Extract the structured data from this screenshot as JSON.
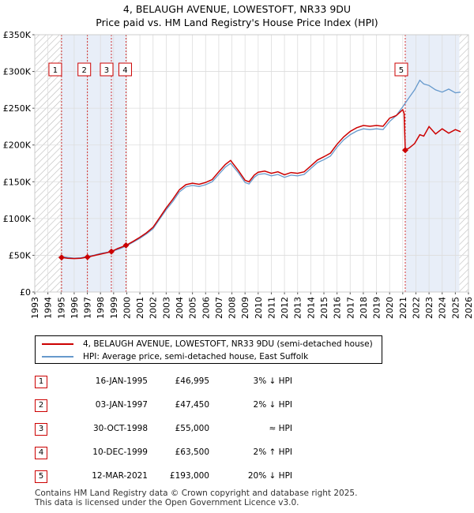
{
  "title": "4, BELAUGH AVENUE, LOWESTOFT, NR33 9DU",
  "subtitle": "Price paid vs. HM Land Registry's House Price Index (HPI)",
  "colors": {
    "price": "#cc0000",
    "hpi": "#6699cc",
    "shade": "#e8eef8",
    "grid": "#dddddd"
  },
  "legend": {
    "price_label": "4, BELAUGH AVENUE, LOWESTOFT, NR33 9DU (semi-detached house)",
    "hpi_label": "HPI: Average price, semi-detached house, East Suffolk"
  },
  "transactions": [
    {
      "num": "1",
      "date": "16-JAN-1995",
      "price": "£46,995",
      "hpi": "3% ↓ HPI"
    },
    {
      "num": "2",
      "date": "03-JAN-1997",
      "price": "£47,450",
      "hpi": "2% ↓ HPI"
    },
    {
      "num": "3",
      "date": "30-OCT-1998",
      "price": "£55,000",
      "hpi": "≈ HPI"
    },
    {
      "num": "4",
      "date": "10-DEC-1999",
      "price": "£63,500",
      "hpi": "2% ↑ HPI"
    },
    {
      "num": "5",
      "date": "12-MAR-2021",
      "price": "£193,000",
      "hpi": "20% ↓ HPI"
    }
  ],
  "footer": {
    "line1": "Contains HM Land Registry data © Crown copyright and database right 2025.",
    "line2": "This data is licensed under the Open Government Licence v3.0."
  },
  "chart_data": {
    "type": "line",
    "title": "4, BELAUGH AVENUE, LOWESTOFT, NR33 9DU",
    "subtitle": "Price paid vs. HM Land Registry's House Price Index (HPI)",
    "xlabel": "",
    "ylabel": "",
    "xlim": [
      1993,
      2026
    ],
    "ylim": [
      0,
      350000
    ],
    "y_ticks": [
      0,
      50000,
      100000,
      150000,
      200000,
      250000,
      300000,
      350000
    ],
    "y_tick_labels": [
      "£0",
      "£50K",
      "£100K",
      "£150K",
      "£200K",
      "£250K",
      "£300K",
      "£350K"
    ],
    "x_ticks": [
      1993,
      1994,
      1995,
      1996,
      1997,
      1998,
      1999,
      2000,
      2001,
      2002,
      2003,
      2004,
      2005,
      2006,
      2007,
      2008,
      2009,
      2010,
      2011,
      2012,
      2013,
      2014,
      2015,
      2016,
      2017,
      2018,
      2019,
      2020,
      2021,
      2022,
      2023,
      2024,
      2025,
      2026
    ],
    "grid": true,
    "hatched_ranges": [
      [
        1993,
        1995.04
      ],
      [
        2025.3,
        2026
      ]
    ],
    "sales": [
      {
        "label": "1",
        "x": 1995.04,
        "y": 46995
      },
      {
        "label": "2",
        "x": 1997.01,
        "y": 47450
      },
      {
        "label": "3",
        "x": 1998.83,
        "y": 55000
      },
      {
        "label": "4",
        "x": 1999.94,
        "y": 63500
      },
      {
        "label": "5",
        "x": 2021.19,
        "y": 193000
      }
    ],
    "series": [
      {
        "name": "HPI: Average price, semi-detached house, East Suffolk",
        "x": [
          1995.0,
          1995.5,
          1996.0,
          1996.5,
          1997.0,
          1997.5,
          1998.0,
          1998.5,
          1999.0,
          1999.5,
          2000.0,
          2000.5,
          2001.0,
          2001.5,
          2002.0,
          2002.5,
          2003.0,
          2003.5,
          2004.0,
          2004.5,
          2005.0,
          2005.5,
          2006.0,
          2006.5,
          2007.0,
          2007.5,
          2007.9,
          2008.5,
          2009.0,
          2009.3,
          2009.7,
          2010.0,
          2010.5,
          2011.0,
          2011.5,
          2012.0,
          2012.5,
          2013.0,
          2013.5,
          2014.0,
          2014.5,
          2015.0,
          2015.5,
          2016.0,
          2016.5,
          2017.0,
          2017.5,
          2018.0,
          2018.5,
          2019.0,
          2019.5,
          2020.0,
          2020.5,
          2021.0,
          2021.5,
          2021.9,
          2022.3,
          2022.6,
          2023.0,
          2023.5,
          2024.0,
          2024.5,
          2025.0,
          2025.4
        ],
        "values": [
          48500,
          47000,
          46000,
          46500,
          48500,
          50000,
          52500,
          54000,
          56000,
          59000,
          63000,
          68000,
          73000,
          79000,
          86000,
          99000,
          112000,
          123000,
          136000,
          143000,
          145000,
          143500,
          146000,
          150000,
          160000,
          170000,
          175000,
          162000,
          149000,
          147000,
          156000,
          160000,
          161000,
          158000,
          160000,
          156000,
          159000,
          158000,
          160000,
          168000,
          176000,
          180000,
          185000,
          197000,
          207000,
          214000,
          219000,
          222000,
          221000,
          222000,
          221000,
          232000,
          240000,
          252000,
          265000,
          275000,
          288000,
          283000,
          281000,
          275000,
          272000,
          276000,
          271000,
          272000
        ]
      },
      {
        "name": "4, BELAUGH AVENUE, LOWESTOFT, NR33 9DU (semi-detached house)",
        "x": [
          1995.04,
          1995.5,
          1996.0,
          1996.5,
          1997.01,
          1997.5,
          1998.0,
          1998.5,
          1998.83,
          1999.3,
          1999.94,
          2000.5,
          2001.0,
          2001.5,
          2002.0,
          2002.5,
          2003.0,
          2003.5,
          2004.0,
          2004.5,
          2005.0,
          2005.5,
          2006.0,
          2006.5,
          2007.0,
          2007.5,
          2007.9,
          2008.5,
          2009.0,
          2009.3,
          2009.7,
          2010.0,
          2010.5,
          2011.0,
          2011.5,
          2012.0,
          2012.5,
          2013.0,
          2013.5,
          2014.0,
          2014.5,
          2015.0,
          2015.5,
          2016.0,
          2016.5,
          2017.0,
          2017.5,
          2018.0,
          2018.5,
          2019.0,
          2019.5,
          2020.0,
          2020.5,
          2021.0,
          2021.1,
          2021.19,
          2021.5,
          2021.9,
          2022.3,
          2022.6,
          2023.0,
          2023.5,
          2024.0,
          2024.5,
          2025.0,
          2025.4
        ],
        "values": [
          46995,
          45800,
          45500,
          46000,
          47450,
          49500,
          51500,
          53500,
          55000,
          59000,
          63500,
          69000,
          74500,
          80500,
          88000,
          101000,
          114500,
          126000,
          139000,
          146000,
          148000,
          146500,
          149000,
          153000,
          163500,
          173500,
          179000,
          165000,
          152000,
          150000,
          159000,
          163000,
          164500,
          161500,
          163500,
          159500,
          162500,
          161500,
          163500,
          171500,
          179500,
          184000,
          189000,
          201000,
          211000,
          218500,
          223500,
          226500,
          225500,
          226500,
          225500,
          236500,
          240000,
          248000,
          243000,
          193000,
          196000,
          202000,
          214000,
          212000,
          225000,
          215000,
          222000,
          216000,
          221000,
          218000
        ]
      }
    ]
  }
}
